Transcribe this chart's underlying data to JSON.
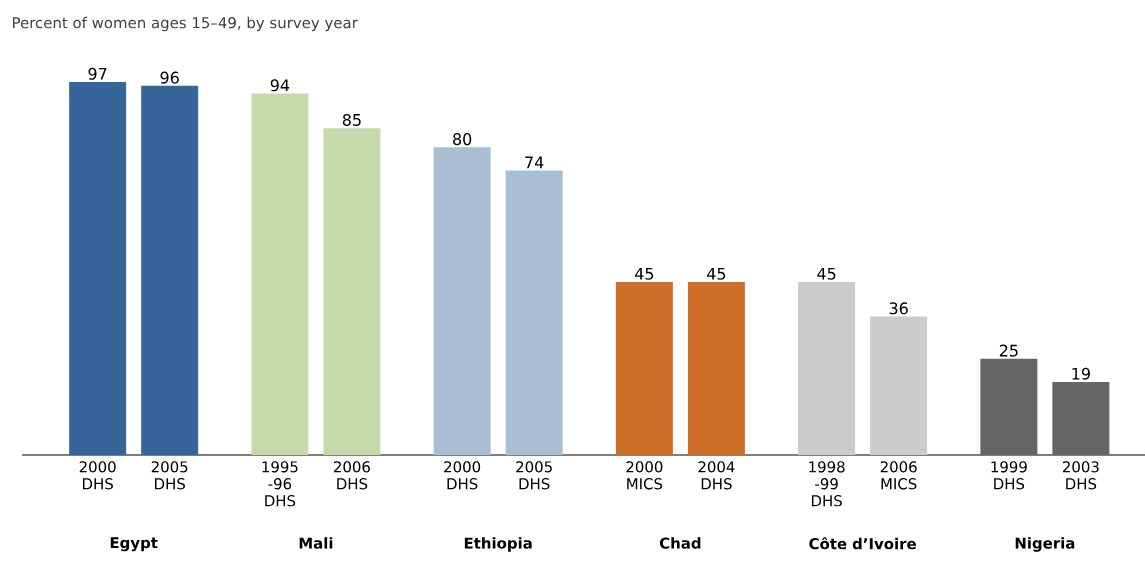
{
  "chart_data": {
    "type": "bar",
    "title": "Percent of women ages 15–49, by survey year",
    "categories": [
      "2000 DHS",
      "2005 DHS",
      "1995 -96 DHS",
      "2006 DHS",
      "2000 DHS",
      "2005 DHS",
      "2000 MICS",
      "2004 DHS",
      "1998 -99 DHS",
      "2006 MICS",
      "1999 DHS",
      "2003 DHS"
    ],
    "values": [
      97,
      96,
      94,
      85,
      80,
      74,
      45,
      45,
      45,
      36,
      25,
      19
    ],
    "colors": [
      "#356599",
      "#356599",
      "#c6d9ad",
      "#c6d9ad",
      "#a9bed2",
      "#a9bed2",
      "#cd6f28",
      "#cd6f28",
      "#cccccc",
      "#cccccc",
      "#666666",
      "#666666"
    ],
    "data_labels": true,
    "annotations": [
      "Egypt",
      "Mali",
      "Ethiopia",
      "Chad",
      "Côte d’Ivoire",
      "Nigeria"
    ]
  }
}
